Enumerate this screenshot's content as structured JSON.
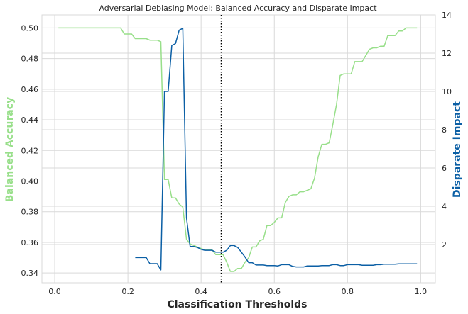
{
  "chart_data": {
    "type": "line",
    "title": "Adversarial Debiasing Model: Balanced Accuracy and Disparate Impact",
    "xlabel": "Classification Thresholds",
    "ylabel_left": "Balanced Accuracy",
    "ylabel_right": "Disparate Impact",
    "xlim": [
      -0.035,
      1.04
    ],
    "ylim_left": [
      0.3336,
      0.5085
    ],
    "ylim_right": [
      0,
      14
    ],
    "x_ticks": [
      "0.0",
      "0.2",
      "0.4",
      "0.6",
      "0.8",
      "1.0"
    ],
    "y_left_ticks": [
      "0.34",
      "0.36",
      "0.38",
      "0.40",
      "0.42",
      "0.44",
      "0.46",
      "0.48",
      "0.50"
    ],
    "y_right_ticks": [
      "2",
      "4",
      "6",
      "8",
      "10",
      "12",
      "14"
    ],
    "grid": true,
    "vline_x": 0.455,
    "colors": {
      "left": "#98df8a",
      "right": "#0b5fa5",
      "vline": "#000000"
    },
    "series": [
      {
        "axis": "left",
        "x": [
          0.01,
          0.02,
          0.03,
          0.04,
          0.05,
          0.06,
          0.07,
          0.08,
          0.09,
          0.1,
          0.11,
          0.12,
          0.13,
          0.14,
          0.15,
          0.16,
          0.17,
          0.18,
          0.19,
          0.2,
          0.21,
          0.22,
          0.23,
          0.24,
          0.25,
          0.26,
          0.27,
          0.28,
          0.29,
          0.3,
          0.31,
          0.32,
          0.33,
          0.34,
          0.35,
          0.36,
          0.37,
          0.38,
          0.39,
          0.4,
          0.41,
          0.42,
          0.43,
          0.44,
          0.45,
          0.46,
          0.47,
          0.48,
          0.49,
          0.5,
          0.51,
          0.52,
          0.53,
          0.54,
          0.55,
          0.56,
          0.57,
          0.58,
          0.59,
          0.6,
          0.61,
          0.62,
          0.63,
          0.64,
          0.65,
          0.66,
          0.67,
          0.68,
          0.69,
          0.7,
          0.71,
          0.72,
          0.73,
          0.74,
          0.75,
          0.76,
          0.77,
          0.78,
          0.79,
          0.8,
          0.81,
          0.82,
          0.83,
          0.84,
          0.85,
          0.86,
          0.87,
          0.88,
          0.89,
          0.9,
          0.91,
          0.92,
          0.93,
          0.94,
          0.95,
          0.96,
          0.97,
          0.98,
          0.99
        ],
        "values": [
          0.5,
          0.5,
          0.5,
          0.5,
          0.5,
          0.5,
          0.5,
          0.5,
          0.5,
          0.5,
          0.5,
          0.5,
          0.5,
          0.5,
          0.5,
          0.5,
          0.5,
          0.5,
          0.496,
          0.496,
          0.496,
          0.493,
          0.493,
          0.493,
          0.493,
          0.492,
          0.492,
          0.492,
          0.491,
          0.401,
          0.401,
          0.389,
          0.389,
          0.385,
          0.383,
          0.362,
          0.359,
          0.358,
          0.357,
          0.356,
          0.355,
          0.355,
          0.355,
          0.352,
          0.352,
          0.352,
          0.347,
          0.341,
          0.341,
          0.343,
          0.343,
          0.347,
          0.35,
          0.357,
          0.357,
          0.361,
          0.362,
          0.371,
          0.371,
          0.373,
          0.376,
          0.376,
          0.386,
          0.39,
          0.391,
          0.391,
          0.393,
          0.393,
          0.394,
          0.395,
          0.402,
          0.416,
          0.424,
          0.424,
          0.425,
          0.437,
          0.45,
          0.469,
          0.47,
          0.47,
          0.47,
          0.478,
          0.478,
          0.478,
          0.482,
          0.486,
          0.487,
          0.487,
          0.488,
          0.488,
          0.495,
          0.495,
          0.495,
          0.498,
          0.498,
          0.5,
          0.5,
          0.5,
          0.5
        ]
      },
      {
        "axis": "right",
        "x": [
          0.22,
          0.23,
          0.24,
          0.25,
          0.26,
          0.27,
          0.28,
          0.29,
          0.3,
          0.31,
          0.32,
          0.33,
          0.34,
          0.35,
          0.36,
          0.37,
          0.38,
          0.39,
          0.4,
          0.41,
          0.42,
          0.43,
          0.44,
          0.45,
          0.46,
          0.47,
          0.48,
          0.49,
          0.5,
          0.51,
          0.52,
          0.53,
          0.54,
          0.55,
          0.56,
          0.57,
          0.58,
          0.59,
          0.6,
          0.61,
          0.62,
          0.63,
          0.64,
          0.65,
          0.66,
          0.67,
          0.68,
          0.69,
          0.7,
          0.71,
          0.72,
          0.73,
          0.74,
          0.75,
          0.76,
          0.77,
          0.78,
          0.79,
          0.8,
          0.81,
          0.82,
          0.83,
          0.84,
          0.85,
          0.86,
          0.87,
          0.88,
          0.89,
          0.9,
          0.91,
          0.92,
          0.93,
          0.94,
          0.95,
          0.96,
          0.97,
          0.98,
          0.99
        ],
        "values": [
          1.32,
          1.32,
          1.32,
          1.32,
          1.0,
          1.0,
          1.0,
          0.67,
          10.0,
          10.0,
          12.4,
          12.5,
          13.2,
          13.3,
          3.4,
          1.9,
          1.9,
          1.85,
          1.75,
          1.7,
          1.7,
          1.7,
          1.6,
          1.6,
          1.6,
          1.7,
          1.95,
          1.95,
          1.85,
          1.6,
          1.35,
          1.05,
          1.05,
          0.93,
          0.93,
          0.93,
          0.9,
          0.9,
          0.9,
          0.88,
          0.95,
          0.95,
          0.95,
          0.86,
          0.83,
          0.83,
          0.83,
          0.88,
          0.88,
          0.88,
          0.88,
          0.9,
          0.9,
          0.9,
          0.95,
          0.95,
          0.9,
          0.9,
          0.95,
          0.95,
          0.95,
          0.95,
          0.92,
          0.92,
          0.92,
          0.92,
          0.95,
          0.95,
          0.97,
          0.97,
          0.97,
          0.97,
          0.99,
          0.99,
          0.99,
          0.99,
          0.99,
          0.99
        ]
      }
    ]
  }
}
